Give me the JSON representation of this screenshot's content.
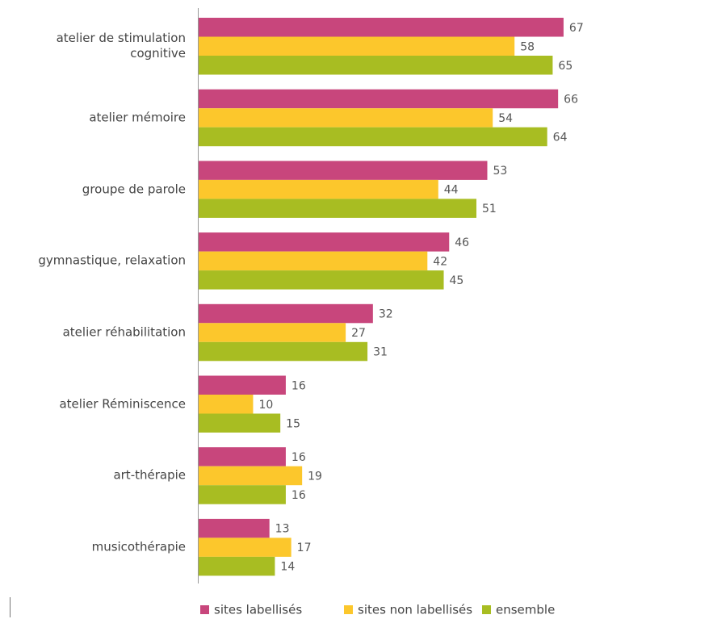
{
  "chart_data": {
    "type": "bar",
    "orientation": "horizontal",
    "categories": [
      "atelier de stimulation\ncognitive",
      "atelier mémoire",
      "groupe de parole",
      "gymnastique, relaxation",
      "atelier réhabilitation",
      "atelier Réminiscence",
      "art-thérapie",
      "musicothérapie"
    ],
    "series": [
      {
        "name": "sites labellisés",
        "color": "#c8467c",
        "values": [
          67,
          66,
          53,
          46,
          32,
          16,
          16,
          13
        ]
      },
      {
        "name": "sites non labellisés",
        "color": "#fcc72c",
        "values": [
          58,
          54,
          44,
          42,
          27,
          10,
          19,
          17
        ]
      },
      {
        "name": "ensemble",
        "color": "#a8bd22",
        "values": [
          65,
          64,
          51,
          45,
          31,
          15,
          16,
          14
        ]
      }
    ],
    "legend": "bottom"
  }
}
